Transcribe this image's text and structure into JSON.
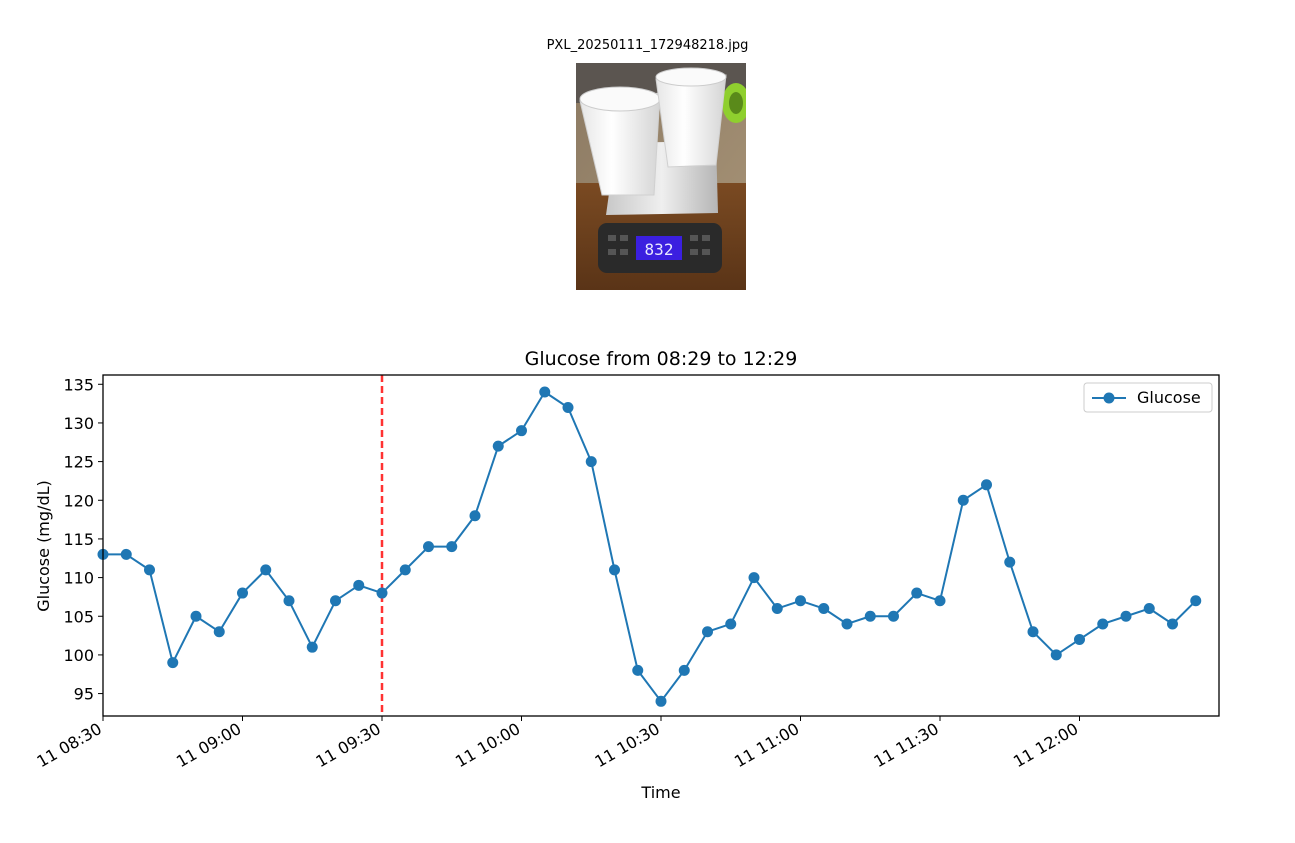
{
  "image": {
    "filename": "PXL_20250111_172948218.jpg",
    "description": "Photo of two glasses of milk on a kitchen scale",
    "scale_display": "832"
  },
  "chart_data": {
    "type": "line",
    "title": "Glucose from 08:29 to 12:29",
    "xlabel": "Time",
    "ylabel": "Glucose (mg/dL)",
    "xlim": [
      "08:30",
      "12:30"
    ],
    "ylim": [
      92.1,
      136.2
    ],
    "x_ticks": [
      "11 08:30",
      "11 09:00",
      "11 09:30",
      "11 10:00",
      "11 10:30",
      "11 11:00",
      "11 11:30",
      "11 12:00"
    ],
    "y_ticks": [
      95,
      100,
      105,
      110,
      115,
      120,
      125,
      130,
      135
    ],
    "grid": false,
    "legend": {
      "placement": "top-right",
      "entries": [
        "Glucose"
      ]
    },
    "series": [
      {
        "name": "Glucose",
        "color": "#1f77b4",
        "marker": "circle",
        "x": [
          "08:30",
          "08:35",
          "08:40",
          "08:45",
          "08:50",
          "08:55",
          "09:00",
          "09:05",
          "09:10",
          "09:15",
          "09:20",
          "09:25",
          "09:30",
          "09:35",
          "09:40",
          "09:45",
          "09:50",
          "09:55",
          "10:00",
          "10:05",
          "10:10",
          "10:15",
          "10:20",
          "10:25",
          "10:30",
          "10:35",
          "10:40",
          "10:45",
          "10:50",
          "10:55",
          "11:00",
          "11:05",
          "11:10",
          "11:15",
          "11:20",
          "11:25",
          "11:30",
          "11:35",
          "11:40",
          "11:45",
          "11:50",
          "11:55",
          "12:00",
          "12:05",
          "12:10",
          "12:15",
          "12:20",
          "12:25"
        ],
        "values": [
          113,
          113,
          111,
          99,
          105,
          103,
          108,
          111,
          107,
          101,
          107,
          109,
          108,
          111,
          114,
          114,
          118,
          127,
          129,
          134,
          132,
          125,
          111,
          98,
          94,
          98,
          103,
          104,
          110,
          106,
          107,
          106,
          104,
          105,
          105,
          108,
          107,
          120,
          122,
          112,
          103,
          100,
          102,
          104,
          105,
          106,
          104,
          107
        ]
      }
    ],
    "annotations": [
      {
        "type": "vertical_line",
        "x": "09:30",
        "style": "dashed",
        "color": "#ff0000"
      }
    ]
  }
}
